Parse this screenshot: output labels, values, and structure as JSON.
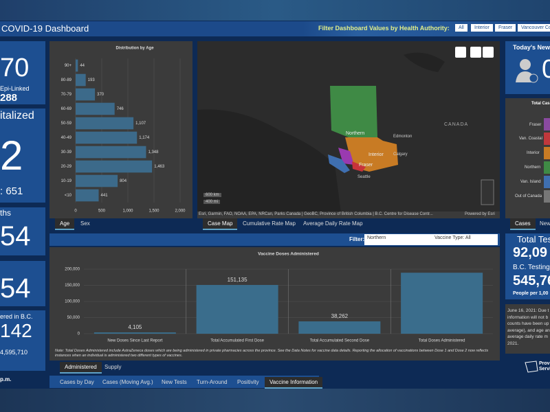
{
  "header": {
    "title": "COVID-19 Dashboard",
    "filter_label": "Filter Dashboard Values by Health Authority:",
    "filter_buttons": [
      "All",
      "Interior",
      "Fraser",
      "Vancouver Co"
    ]
  },
  "left_cards": [
    {
      "value": "70",
      "label": "Epi-Linked",
      "sub": "288"
    },
    {
      "label": "italized",
      "value": "2",
      "sub": ": 651"
    },
    {
      "label": "ths",
      "value": "54"
    },
    {
      "value": "54"
    },
    {
      "label": "ered in B.C.",
      "value": "142",
      "sub": "4,595,710"
    }
  ],
  "left_footer": "p.m.",
  "chart_data": [
    {
      "type": "bar",
      "orientation": "horizontal",
      "title": "Distribution by Age",
      "categories": [
        "90+",
        "80-89",
        "70-79",
        "60-69",
        "50-59",
        "40-49",
        "30-39",
        "20-29",
        "10-19",
        "<10"
      ],
      "values": [
        44,
        193,
        370,
        746,
        1107,
        1174,
        1348,
        1463,
        804,
        441
      ],
      "value_labels": [
        "44",
        "193",
        "370",
        "746",
        "1,107",
        "1,174",
        "1,348",
        "1,463",
        "804",
        "441"
      ],
      "xlim": [
        0,
        2000
      ],
      "xticks": [
        0,
        500,
        {
          "value": 1000,
          "label": "1,000"
        },
        {
          "value": 1500,
          "label": "1,500"
        },
        {
          "value": 2000,
          "label": "2,000"
        }
      ],
      "color": "#3c6a8a",
      "grid": true
    },
    {
      "type": "bar",
      "orientation": "vertical",
      "title": "Vaccine Doses Administered",
      "categories": [
        "New Doses Since Last Report",
        "Total Accumulated First Dose",
        "Total Accumulated Second Dose",
        "Total Doses Administered"
      ],
      "values": [
        4105,
        151135,
        38262,
        189000
      ],
      "value_labels": [
        "4,105",
        "151,135",
        "38,262",
        null
      ],
      "ylim": [
        0,
        200000
      ],
      "yticks": [
        0,
        {
          "value": 50000,
          "label": "50,000"
        },
        {
          "value": 100000,
          "label": "100,000"
        },
        {
          "value": 150000,
          "label": "150,000"
        },
        {
          "value": 200000,
          "label": "200,000"
        }
      ],
      "color": "#3a6d8c",
      "grid": true
    }
  ],
  "age_tabs": [
    "Age",
    "Sex"
  ],
  "map": {
    "labels": [
      "Northern",
      "Edmonton",
      "CANADA",
      "Interior",
      "Calgary",
      "Fraser",
      "Seattle"
    ],
    "scale": [
      "600 km",
      "400 mi"
    ],
    "attribution": "Esri, Garmin, FAO, NOAA, EPA, NRCan, Parks Canada | GeoBC, Province of British Columbia | B.C. Centre for Disease Contr...",
    "powered": "Powered by Esri"
  },
  "map_tabs": [
    "Case Map",
    "Cumulative Rate Map",
    "Average Daily Rate Map"
  ],
  "vaccine_filter": {
    "label": "Filter:",
    "region": "Northern",
    "vaccine_type": "Vaccine Type: All"
  },
  "vaccine_note": "Note: Total Doses Administered include AstraZeneca doses which are being administered in private pharmacies across the province. See the Data Notes for vaccine data details. Reporting the allocation of vaccinations between Dose 1 and Dose 2 now reflects instances when an individual is administered two different types of vaccines.",
  "vaccine_tabs": [
    "Administered",
    "Supply"
  ],
  "bottom_tabs": [
    "Cases by Day",
    "Cases (Moving Avg.)",
    "New Tests",
    "Turn-Around",
    "Positivity",
    "Vaccine Information"
  ],
  "right": {
    "todays_title": "Today's New C",
    "todays_value": "0",
    "total_cases_title": "Total Cas",
    "total_cases_categories": [
      "Fraser",
      "Van. Coastal",
      "Interior",
      "Northern",
      "Van. Island",
      "Out of Canada"
    ],
    "tabs": [
      "Cases",
      "New"
    ],
    "tests_title": "Total Tes",
    "tests_value": "92,09",
    "bc_testing": "B.C. Testing",
    "bc_value": "545,76",
    "per": "People per 1,00",
    "note": [
      "June 16, 2021: Due t",
      "information will not b",
      "counts have been up",
      "average), and age and se",
      "average daily rate m",
      "2021."
    ],
    "logo": [
      "Provi",
      "Servic"
    ]
  }
}
